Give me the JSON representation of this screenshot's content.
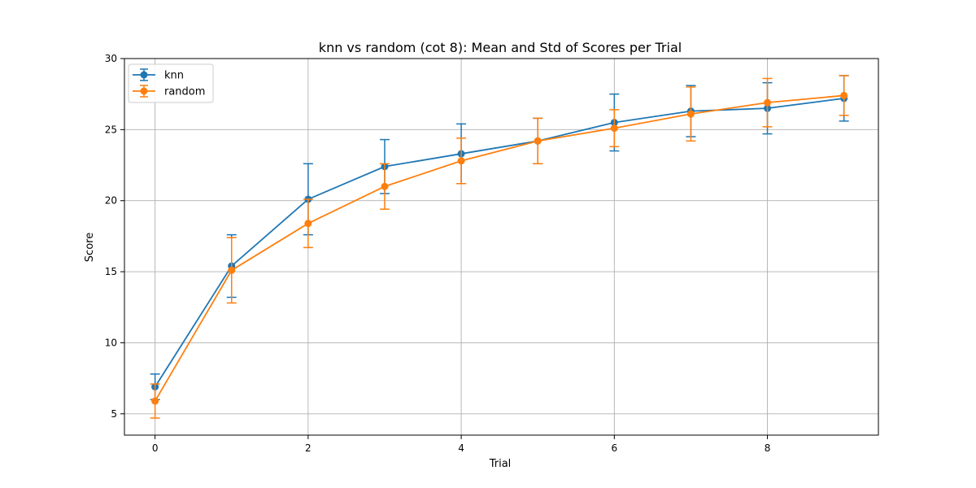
{
  "chart_data": {
    "type": "line",
    "title": "knn vs random (cot 8): Mean and Std of Scores per Trial",
    "xlabel": "Trial",
    "ylabel": "Score",
    "xlim": [
      -0.4,
      9.45
    ],
    "ylim": [
      3.5,
      30
    ],
    "xticks": [
      0,
      2,
      4,
      6,
      8
    ],
    "yticks": [
      5,
      10,
      15,
      20,
      25,
      30
    ],
    "grid": true,
    "legend_position": "top-left",
    "x": [
      0,
      1,
      2,
      3,
      4,
      5,
      6,
      7,
      8,
      9
    ],
    "series": [
      {
        "name": "knn",
        "color": "#1f77b4",
        "values": [
          6.9,
          15.4,
          20.1,
          22.4,
          23.3,
          24.2,
          25.5,
          26.3,
          26.5,
          27.2
        ],
        "std": [
          0.9,
          2.2,
          2.5,
          1.9,
          2.1,
          1.6,
          2.0,
          1.8,
          1.8,
          1.6
        ]
      },
      {
        "name": "random",
        "color": "#ff7f0e",
        "values": [
          5.9,
          15.1,
          18.4,
          21.0,
          22.8,
          24.2,
          25.1,
          26.1,
          26.9,
          27.4
        ],
        "std": [
          1.2,
          2.3,
          1.7,
          1.6,
          1.6,
          1.6,
          1.3,
          1.9,
          1.7,
          1.4
        ]
      }
    ]
  }
}
